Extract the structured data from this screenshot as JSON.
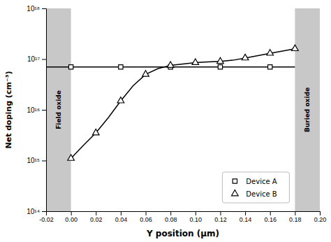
{
  "chart_data": {
    "type": "line",
    "xlabel": "Y position (μm)",
    "ylabel": "Net doping (cm⁻³)",
    "log": "y",
    "grid": false,
    "legend": "lower right",
    "xlim": [
      -0.02,
      0.2
    ],
    "ylim": [
      100000000000000.0,
      1e+18
    ],
    "xticks": [
      -0.02,
      {
        "value": 0.0,
        "label": "0.00"
      },
      0.02,
      0.04,
      0.06,
      0.08,
      {
        "value": 0.1,
        "label": "0.10"
      },
      0.12,
      0.14,
      0.16,
      0.18,
      {
        "value": 0.2,
        "label": "0.20"
      }
    ],
    "yticks": [
      {
        "value": 100000000000000.0,
        "label": "10¹⁴"
      },
      {
        "value": 1000000000000000.0,
        "label": "10¹⁵"
      },
      {
        "value": 1e+16,
        "label": "10¹⁶"
      },
      {
        "value": 1e+17,
        "label": "10¹⁷"
      },
      {
        "value": 1e+18,
        "label": "10¹⁸"
      }
    ],
    "regions": [
      {
        "x": [
          -0.02,
          0.0
        ],
        "label": "Field oxide",
        "color": "#c8c8c8"
      },
      {
        "x": [
          0.18,
          0.2
        ],
        "label": "Buried oxide",
        "color": "#c8c8c8"
      }
    ],
    "series": [
      {
        "name": "Device A",
        "color": "#000000",
        "marker": "square",
        "x": [
          -0.02,
          0.0,
          0.04,
          0.08,
          0.12,
          0.16,
          0.18
        ],
        "values": [
          7e+16,
          7e+16,
          7e+16,
          7e+16,
          7e+16,
          7e+16,
          7e+16
        ],
        "markers": {
          "x": [
            0.0,
            0.04,
            0.08,
            0.12,
            0.16
          ],
          "values": [
            7e+16,
            7e+16,
            7e+16,
            7e+16,
            7e+16
          ]
        }
      },
      {
        "name": "Device B",
        "color": "#000000",
        "marker": "triangle",
        "x": [
          0.0,
          0.01,
          0.02,
          0.03,
          0.04,
          0.05,
          0.06,
          0.07,
          0.08,
          0.09,
          0.1,
          0.11,
          0.12,
          0.13,
          0.14,
          0.16,
          0.18
        ],
        "values": [
          1100000000000000.0,
          2000000000000000.0,
          3500000000000000.0,
          7000000000000000.0,
          1.5e+16,
          3e+16,
          5e+16,
          6.5e+16,
          7.5e+16,
          8e+16,
          8.5e+16,
          8.8e+16,
          9e+16,
          9.5e+16,
          1.05e+17,
          1.3e+17,
          1.6e+17
        ],
        "markers": {
          "x": [
            0.0,
            0.02,
            0.04,
            0.06,
            0.08,
            0.1,
            0.12,
            0.14,
            0.16,
            0.18
          ],
          "values": [
            1100000000000000.0,
            3500000000000000.0,
            1.5e+16,
            5e+16,
            7.5e+16,
            8.5e+16,
            9e+16,
            1.05e+17,
            1.3e+17,
            1.6e+17
          ]
        }
      }
    ]
  }
}
